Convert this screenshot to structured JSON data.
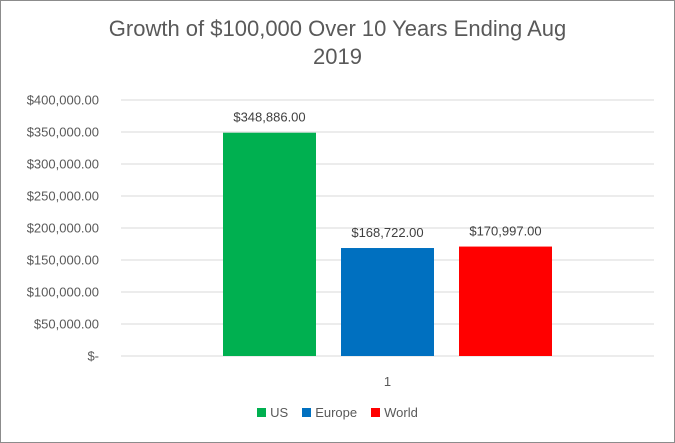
{
  "chart_data": {
    "type": "bar",
    "title_line1": "Growth of $100,000 Over 10 Years Ending Aug",
    "title_line2": "2019",
    "categories": [
      "1"
    ],
    "series": [
      {
        "name": "US",
        "values": [
          348886
        ],
        "label": "$348,886.00",
        "color": "#00b050"
      },
      {
        "name": "Europe",
        "values": [
          168722
        ],
        "label": "$168,722.00",
        "color": "#0070c0"
      },
      {
        "name": "World",
        "values": [
          170997
        ],
        "label": "$170,997.00",
        "color": "#ff0000"
      }
    ],
    "ylim": [
      0,
      400000
    ],
    "yticks": [
      {
        "value": 400000,
        "label": "$400,000.00"
      },
      {
        "value": 350000,
        "label": "$350,000.00"
      },
      {
        "value": 300000,
        "label": "$300,000.00"
      },
      {
        "value": 250000,
        "label": "$250,000.00"
      },
      {
        "value": 200000,
        "label": "$200,000.00"
      },
      {
        "value": 150000,
        "label": "$150,000.00"
      },
      {
        "value": 100000,
        "label": "$100,000.00"
      },
      {
        "value": 50000,
        "label": "$50,000.00"
      },
      {
        "value": 0,
        "label": "$-"
      }
    ],
    "grid": true,
    "legend_position": "bottom",
    "gridline_color": "#d9d9d9"
  }
}
